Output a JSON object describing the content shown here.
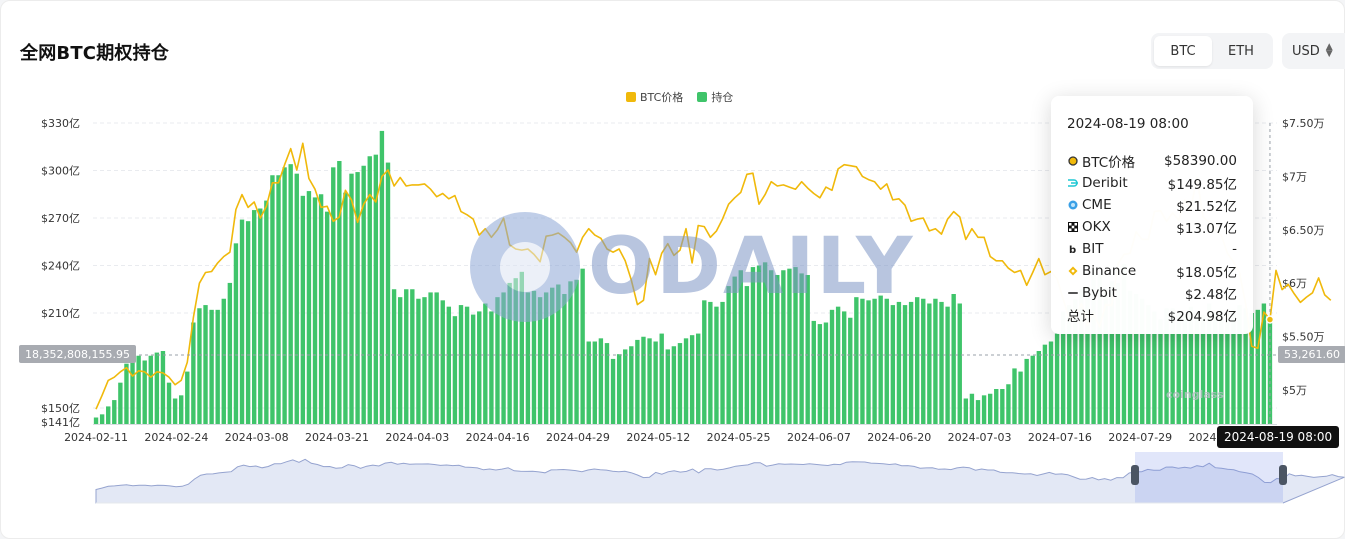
{
  "header": {
    "title": "全网BTC期权持仓",
    "toggle": [
      {
        "label": "BTC",
        "active": true
      },
      {
        "label": "ETH",
        "active": false
      }
    ],
    "currency": "USD"
  },
  "legend": [
    {
      "label": "BTC价格",
      "color": "#f0b90b"
    },
    {
      "label": "持仓",
      "color": "#3fc46a"
    }
  ],
  "tooltip": {
    "time": "2024-08-19 08:00",
    "rows": [
      {
        "name": "BTC价格",
        "value": "$58390.00",
        "icon": "btc-dot-icon"
      },
      {
        "name": "Deribit",
        "value": "$149.85亿",
        "icon": "deribit-icon"
      },
      {
        "name": "CME",
        "value": "$21.52亿",
        "icon": "cme-icon"
      },
      {
        "name": "OKX",
        "value": "$13.07亿",
        "icon": "okx-icon"
      },
      {
        "name": "BIT",
        "value": "-",
        "icon": "bit-icon"
      },
      {
        "name": "Binance",
        "value": "$18.05亿",
        "icon": "binance-icon"
      },
      {
        "name": "Bybit",
        "value": "$2.48亿",
        "icon": "bybit-icon"
      },
      {
        "name": "总计",
        "value": "$204.98亿",
        "icon": ""
      }
    ]
  },
  "crosshair": {
    "left_value": "18,352,808,155.95",
    "right_value": "53,261.60",
    "date": "2024-08-19 08:00"
  },
  "watermark": "ODAILY",
  "brand_mark": "coinglass",
  "chart_data": {
    "type": "bar+line",
    "x_start": "2024-02-11",
    "x_end": "2024-08-19",
    "x_ticks": [
      "2024-02-11",
      "2024-02-24",
      "2024-03-08",
      "2024-03-21",
      "2024-04-03",
      "2024-04-16",
      "2024-04-29",
      "2024-05-12",
      "2024-05-25",
      "2024-06-07",
      "2024-06-20",
      "2024-07-03",
      "2024-07-16",
      "2024-07-29",
      "2024-08-11"
    ],
    "left_axis": {
      "ticks": [
        "$330亿",
        "$300亿",
        "$270亿",
        "$240亿",
        "$210亿",
        "$150亿",
        "$141亿"
      ],
      "tick_values": [
        330,
        300,
        270,
        240,
        210,
        150,
        141
      ],
      "range": [
        141,
        330
      ],
      "unit": "亿"
    },
    "right_axis": {
      "ticks": [
        "$7.50万",
        "$7万",
        "$6.50万",
        "$6万",
        "$5.50万",
        "$5万"
      ],
      "tick_values": [
        7.5,
        7.0,
        6.5,
        6.0,
        5.5,
        5.0
      ],
      "range": [
        4.7,
        7.5
      ],
      "unit": "万"
    },
    "grid": true,
    "legend_position": "top-center",
    "series": [
      {
        "name": "持仓",
        "type": "bar",
        "axis": "left",
        "color": "#3fc46a",
        "values": [
          144,
          146,
          151,
          155,
          166,
          178,
          181,
          183,
          180,
          183,
          185,
          186,
          166,
          156,
          158,
          173,
          204,
          213,
          215,
          212,
          212,
          219,
          229,
          254,
          269,
          268,
          275,
          276,
          281,
          297,
          297,
          302,
          304,
          298,
          284,
          287,
          283,
          285,
          274,
          302,
          306,
          286,
          298,
          299,
          303,
          309,
          310,
          325,
          305,
          225,
          220,
          225,
          225,
          219,
          220,
          223,
          223,
          218,
          214,
          208,
          215,
          214,
          209,
          211,
          216,
          211,
          220,
          223,
          229,
          232,
          236,
          223,
          224,
          220,
          223,
          226,
          228,
          222,
          230,
          231,
          238,
          192,
          192,
          194,
          191,
          181,
          184,
          187,
          189,
          193,
          195,
          194,
          192,
          197,
          187,
          189,
          191,
          194,
          196,
          197,
          218,
          217,
          214,
          217,
          227,
          233,
          237,
          227,
          239,
          240,
          242,
          237,
          234,
          237,
          238,
          239,
          235,
          234,
          205,
          203,
          204,
          212,
          214,
          211,
          207,
          220,
          219,
          218,
          219,
          221,
          219,
          215,
          217,
          215,
          217,
          220,
          219,
          216,
          219,
          217,
          214,
          222,
          216,
          156,
          159,
          155,
          158,
          159,
          162,
          162,
          165,
          175,
          173,
          181,
          183,
          186,
          190,
          192,
          197,
          211,
          215,
          219,
          225,
          226,
          238,
          235,
          226,
          230,
          229,
          241,
          224,
          222,
          219,
          215,
          211,
          206,
          213,
          213,
          210,
          208,
          214,
          211,
          209,
          216,
          211,
          212,
          211,
          212,
          215,
          213,
          210,
          212,
          216,
          205
        ]
      },
      {
        "name": "BTC价格",
        "type": "line",
        "axis": "right",
        "color": "#f0b90b",
        "values": [
          4.82,
          4.95,
          5.09,
          5.12,
          5.17,
          5.21,
          5.13,
          5.18,
          5.17,
          5.12,
          5.17,
          5.16,
          5.12,
          5.05,
          5.09,
          5.26,
          5.68,
          6.0,
          6.1,
          6.11,
          6.19,
          6.25,
          6.29,
          6.69,
          6.83,
          6.71,
          6.76,
          6.61,
          6.72,
          6.94,
          6.94,
          7.11,
          7.26,
          7.06,
          7.31,
          6.98,
          6.88,
          6.71,
          6.72,
          6.58,
          6.62,
          6.87,
          6.78,
          6.57,
          6.74,
          6.83,
          6.76,
          7.0,
          7.06,
          6.91,
          6.99,
          6.91,
          6.92,
          6.92,
          6.93,
          6.88,
          6.81,
          6.84,
          6.79,
          6.82,
          6.67,
          6.64,
          6.6,
          6.45,
          6.51,
          6.43,
          6.5,
          6.61,
          6.36,
          6.32,
          6.31,
          6.32,
          6.27,
          6.2,
          6.44,
          6.45,
          6.47,
          6.43,
          6.38,
          6.29,
          6.43,
          6.51,
          6.45,
          6.42,
          6.32,
          6.29,
          6.32,
          6.21,
          6.03,
          5.8,
          5.84,
          6.23,
          6.08,
          6.28,
          6.37,
          6.26,
          6.31,
          6.51,
          6.19,
          6.54,
          6.53,
          6.43,
          6.49,
          6.6,
          6.74,
          6.8,
          6.85,
          7.02,
          7.03,
          6.74,
          6.83,
          6.95,
          6.91,
          6.92,
          6.9,
          6.88,
          6.95,
          6.89,
          6.84,
          6.8,
          6.9,
          6.87,
          7.07,
          7.11,
          7.1,
          7.09,
          7.0,
          6.97,
          6.95,
          6.88,
          6.93,
          6.78,
          6.79,
          6.73,
          6.58,
          6.6,
          6.61,
          6.49,
          6.51,
          6.46,
          6.6,
          6.67,
          6.62,
          6.41,
          6.51,
          6.43,
          6.43,
          6.25,
          6.21,
          6.21,
          6.14,
          6.1,
          6.12,
          5.98,
          6.1,
          6.23,
          6.08,
          6.11,
          6.04,
          5.85,
          5.67,
          5.68,
          5.81,
          5.61,
          5.72,
          5.59,
          5.8,
          5.79,
          6.18,
          6.27,
          6.28,
          6.48,
          6.41,
          6.41,
          6.67,
          6.68,
          6.58,
          6.66,
          6.59,
          6.78,
          6.7,
          6.99,
          6.62,
          6.57,
          6.49,
          6.45,
          6.28,
          6.2,
          6.1,
          5.81,
          5.41,
          5.39,
          5.73,
          5.66,
          6.12,
          5.94,
          5.99,
          5.9,
          5.82,
          5.87,
          5.91,
          6.05,
          5.89,
          5.84
        ]
      }
    ]
  }
}
